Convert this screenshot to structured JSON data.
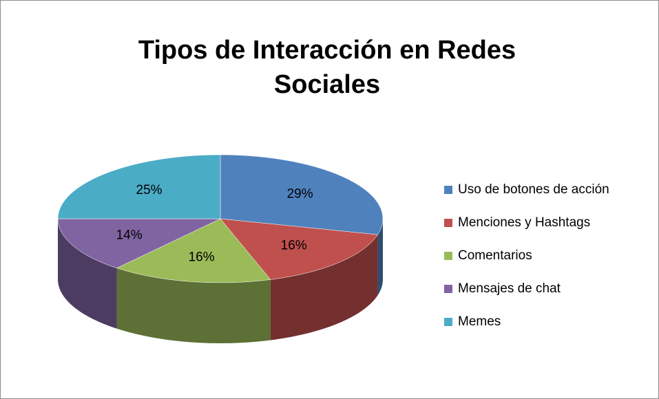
{
  "chart_data": {
    "type": "pie3d",
    "title": "Tipos de Interacción en Redes Sociales",
    "categories": [
      "Uso de botones de acción",
      "Menciones y Hashtags",
      "Comentarios",
      "Mensajes de chat",
      "Memes"
    ],
    "values": [
      29,
      16,
      16,
      14,
      25
    ],
    "value_labels": [
      "29%",
      "16%",
      "16%",
      "14%",
      "25%"
    ],
    "colors": [
      "#4f81bd",
      "#c0504d",
      "#9bbb59",
      "#8064a2",
      "#4bacc6"
    ],
    "legend": "right"
  }
}
